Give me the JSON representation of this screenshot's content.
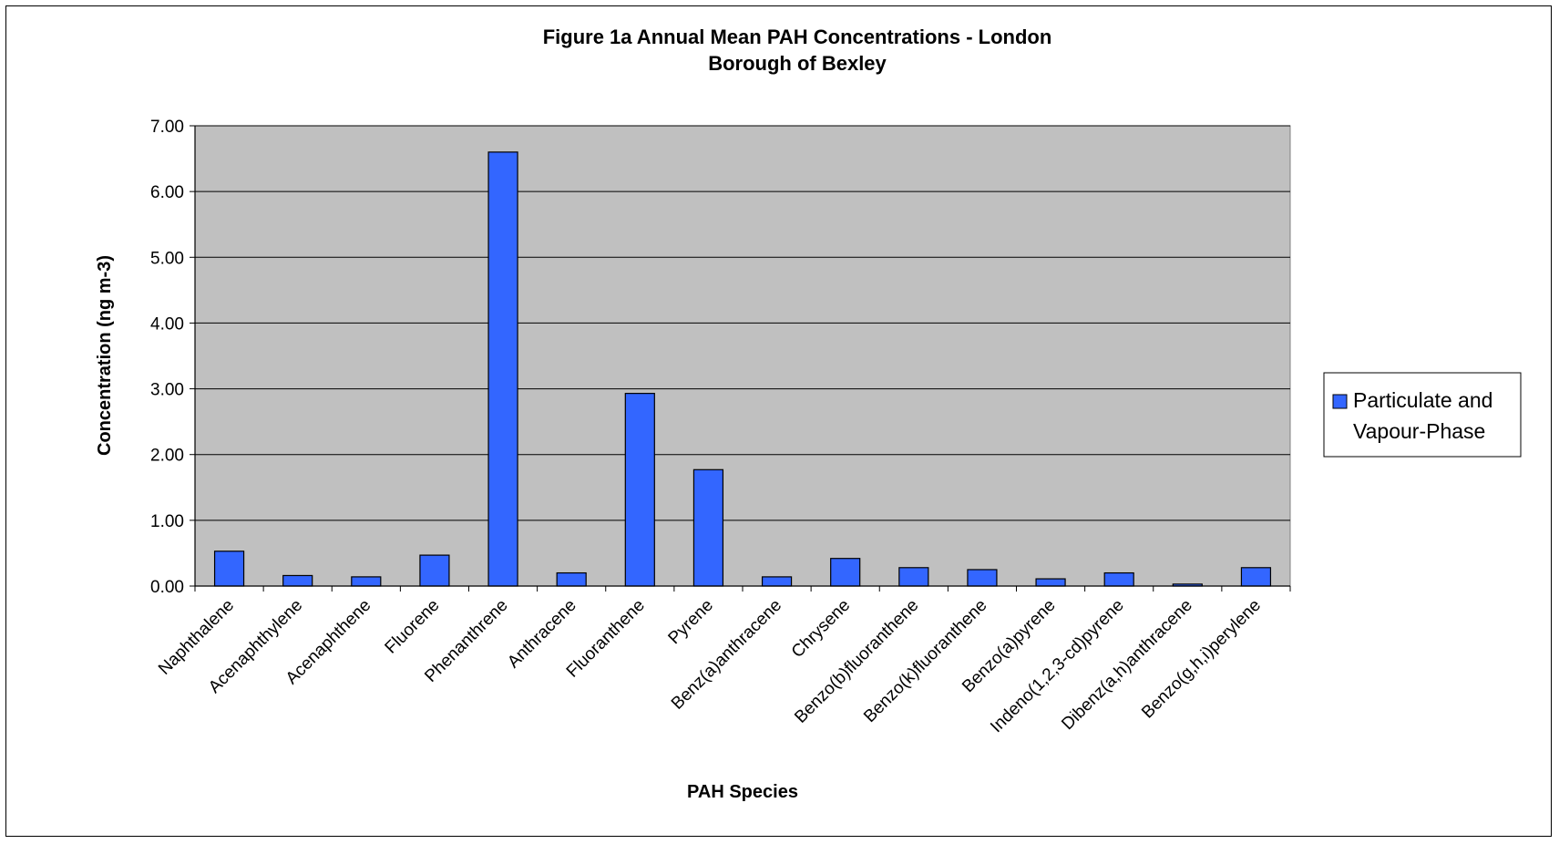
{
  "chart_data": {
    "type": "bar",
    "title": "Figure 1a Annual Mean PAH Concentrations - London",
    "subtitle": "Borough of Bexley",
    "xlabel": "PAH Species",
    "ylabel": "Concentration (ng m-3)",
    "ylim": [
      0,
      7
    ],
    "y_ticks": [
      "0.00",
      "1.00",
      "2.00",
      "3.00",
      "4.00",
      "5.00",
      "6.00",
      "7.00"
    ],
    "grid": true,
    "legend_position": "right",
    "plot_background": "#C0C0C0",
    "bar_color": "#3366FF",
    "categories": [
      "Naphthalene",
      "Acenaphthylene",
      "Acenaphthene",
      "Fluorene",
      "Phenanthrene",
      "Anthracene",
      "Fluoranthene",
      "Pyrene",
      "Benz(a)anthracene",
      "Chrysene",
      "Benzo(b)fluoranthene",
      "Benzo(k)fluoranthene",
      "Benzo(a)pyrene",
      "Indeno(1,2,3-cd)pyrene",
      "Dibenz(a,h)anthracene",
      "Benzo(g,h,i)perylene"
    ],
    "series": [
      {
        "name": "Particulate and Vapour-Phase",
        "legend_lines": [
          "Particulate and",
          "Vapour-Phase"
        ],
        "values": [
          0.53,
          0.16,
          0.14,
          0.47,
          6.6,
          0.2,
          2.93,
          1.77,
          0.14,
          0.42,
          0.28,
          0.25,
          0.11,
          0.2,
          0.03,
          0.28
        ]
      }
    ]
  }
}
